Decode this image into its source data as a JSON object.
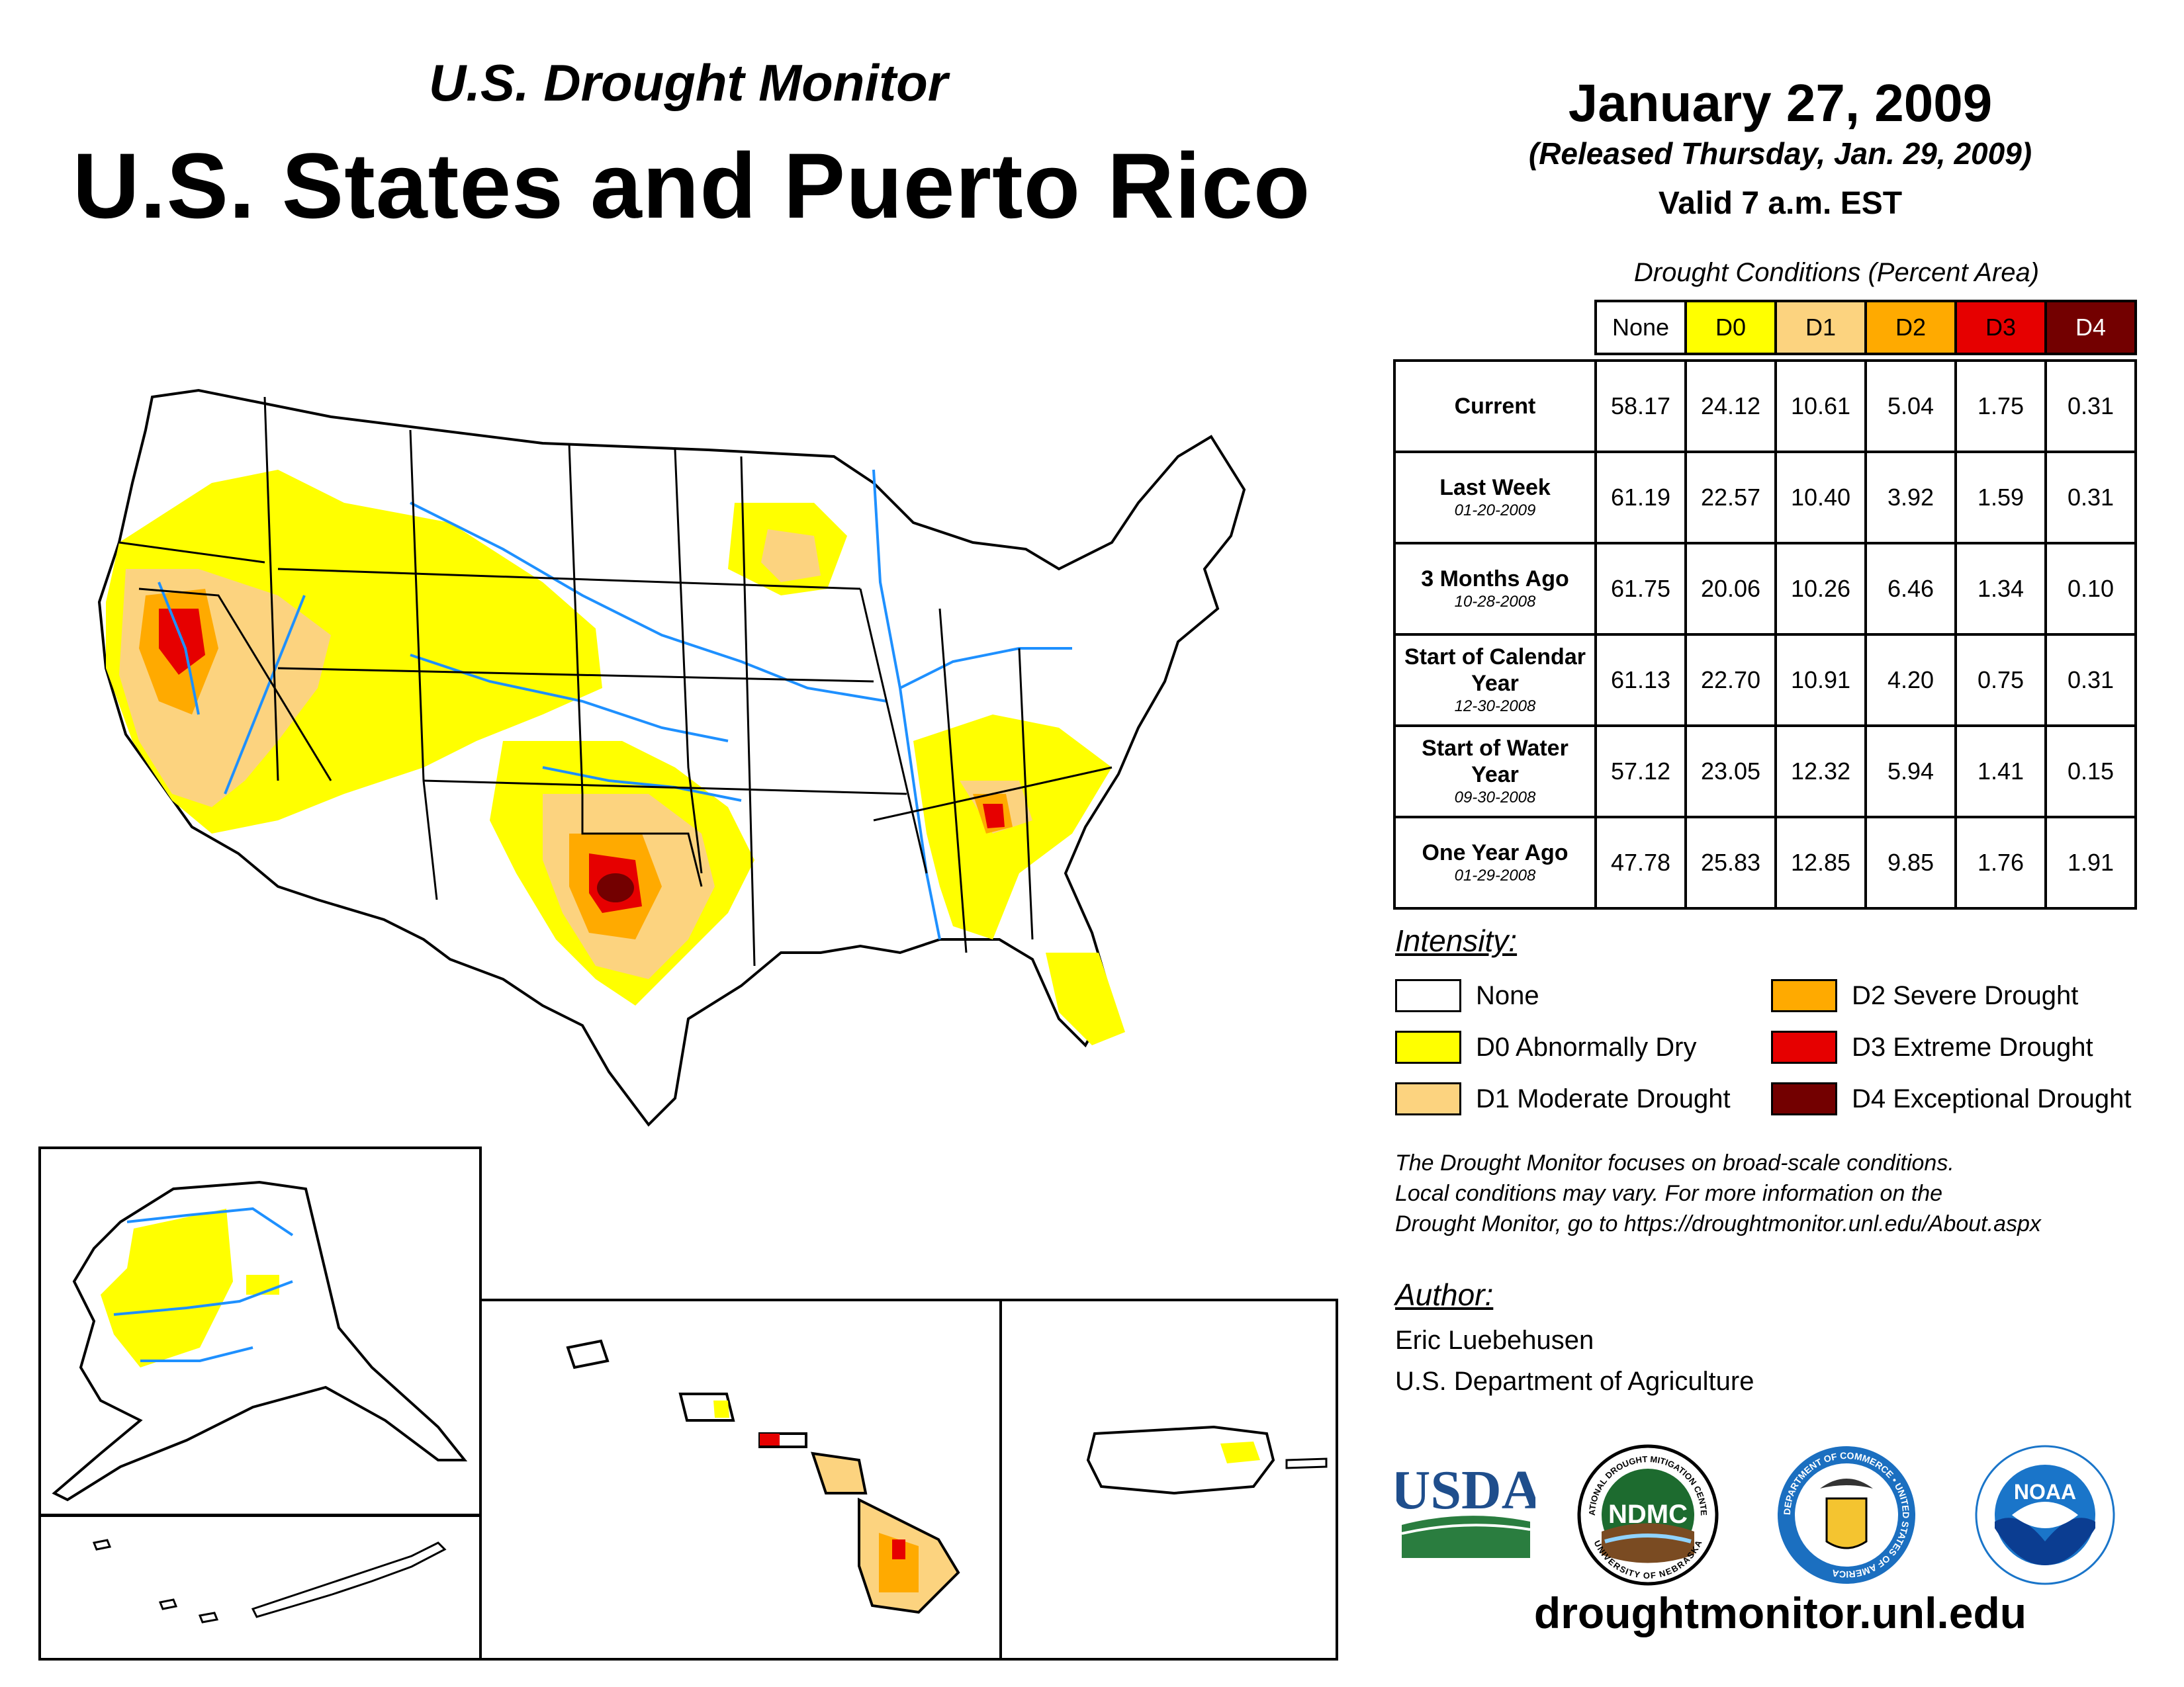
{
  "header": {
    "subtitle": "U.S. Drought Monitor",
    "title": "U.S. States and Puerto Rico",
    "date": "January 27, 2009",
    "released": "(Released Thursday, Jan. 29, 2009)",
    "valid": "Valid 7 a.m. EST"
  },
  "table": {
    "caption": "Drought Conditions (Percent Area)",
    "columns": [
      "None",
      "D0",
      "D1",
      "D2",
      "D3",
      "D4"
    ],
    "column_colors": [
      "#ffffff",
      "#ffff00",
      "#fcd37f",
      "#ffaa00",
      "#e60000",
      "#730000"
    ],
    "rows": [
      {
        "label": "Current",
        "sub": "",
        "values": [
          "58.17",
          "24.12",
          "10.61",
          "5.04",
          "1.75",
          "0.31"
        ]
      },
      {
        "label": "Last Week",
        "sub": "01-20-2009",
        "values": [
          "61.19",
          "22.57",
          "10.40",
          "3.92",
          "1.59",
          "0.31"
        ]
      },
      {
        "label": "3 Months Ago",
        "sub": "10-28-2008",
        "values": [
          "61.75",
          "20.06",
          "10.26",
          "6.46",
          "1.34",
          "0.10"
        ]
      },
      {
        "label": "Start of Calendar Year",
        "sub": "12-30-2008",
        "values": [
          "61.13",
          "22.70",
          "10.91",
          "4.20",
          "0.75",
          "0.31"
        ]
      },
      {
        "label": "Start of Water Year",
        "sub": "09-30-2008",
        "values": [
          "57.12",
          "23.05",
          "12.32",
          "5.94",
          "1.41",
          "0.15"
        ]
      },
      {
        "label": "One Year Ago",
        "sub": "01-29-2008",
        "values": [
          "47.78",
          "25.83",
          "12.85",
          "9.85",
          "1.76",
          "1.91"
        ]
      }
    ]
  },
  "legend": {
    "heading": "Intensity:",
    "items": [
      {
        "label": "None",
        "color": "#ffffff"
      },
      {
        "label": "D0 Abnormally Dry",
        "color": "#ffff00"
      },
      {
        "label": "D1 Moderate Drought",
        "color": "#fcd37f"
      },
      {
        "label": "D2 Severe Drought",
        "color": "#ffaa00"
      },
      {
        "label": "D3 Extreme Drought",
        "color": "#e60000"
      },
      {
        "label": "D4 Exceptional Drought",
        "color": "#730000"
      }
    ]
  },
  "note": {
    "line1": "The Drought Monitor focuses on broad-scale conditions.",
    "line2": "Local conditions may vary. For more information on the",
    "line3": "Drought Monitor, go to https://droughtmonitor.unl.edu/About.aspx"
  },
  "author": {
    "heading": "Author:",
    "name": "Eric Luebehusen",
    "org": "U.S. Department of Agriculture"
  },
  "logos": {
    "usda": "USDA",
    "ndmc": "NDMC",
    "ndmc_ring_top": "NATIONAL DROUGHT MITIGATION CENTER",
    "ndmc_ring_bottom": "UNIVERSITY OF NEBRASKA",
    "doc_ring": "DEPARTMENT OF COMMERCE • UNITED STATES OF AMERICA",
    "noaa": "NOAA"
  },
  "footer": {
    "url": "droughtmonitor.unl.edu"
  },
  "colors": {
    "water": "#1e90ff",
    "usda_blue": "#1f4e8c",
    "usda_green": "#2a7d3f",
    "ndmc_green": "#1d6b2f",
    "doc_blue": "#1b6fc0",
    "noaa_blue": "#1a75c9"
  }
}
